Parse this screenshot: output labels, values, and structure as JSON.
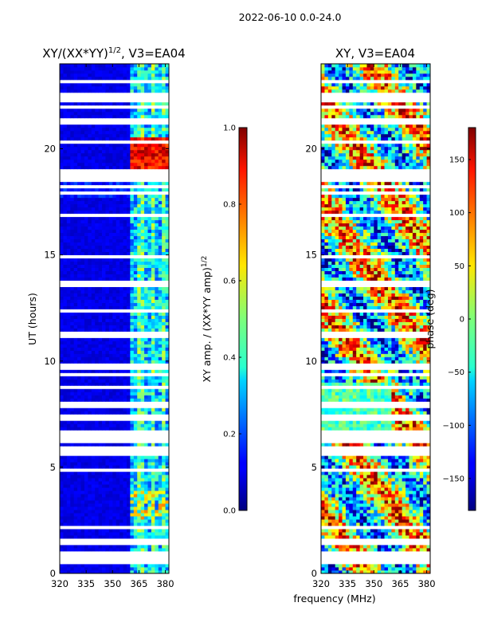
{
  "chart_data": {
    "suptitle": "2022-06-10 0.0-24.0",
    "xlabel": "frequency (MHz)",
    "panels": [
      {
        "type": "heatmap",
        "title": "XY/(XX*YY)",
        "title_sup": "1/2",
        "title_suffix": ", V3=EA04",
        "ylabel": "UT (hours)",
        "xlim": [
          320,
          382
        ],
        "ylim": [
          0,
          24
        ],
        "xticks": [
          320,
          335,
          350,
          365,
          380
        ],
        "yticks": [
          0,
          5,
          10,
          15,
          20
        ],
        "colorbar": {
          "label": "XY amp. / (XX*YY amp)",
          "label_sup": "1/2",
          "range": [
            0.0,
            1.0
          ],
          "ticks": [
            "0.0",
            "0.2",
            "0.4",
            "0.6",
            "0.8",
            "1.0"
          ]
        }
      },
      {
        "type": "heatmap",
        "title": "XY, V3=EA04",
        "ylabel": "",
        "xlim": [
          320,
          382
        ],
        "ylim": [
          0,
          24
        ],
        "xticks": [
          320,
          335,
          350,
          365,
          380
        ],
        "yticks": [
          0,
          5,
          10,
          15,
          20
        ],
        "colorbar": {
          "label": "phase (deg)",
          "range": [
            -180,
            180
          ],
          "ticks": [
            "−150",
            "−100",
            "−50",
            "0",
            "50",
            "100",
            "150"
          ]
        }
      }
    ]
  }
}
